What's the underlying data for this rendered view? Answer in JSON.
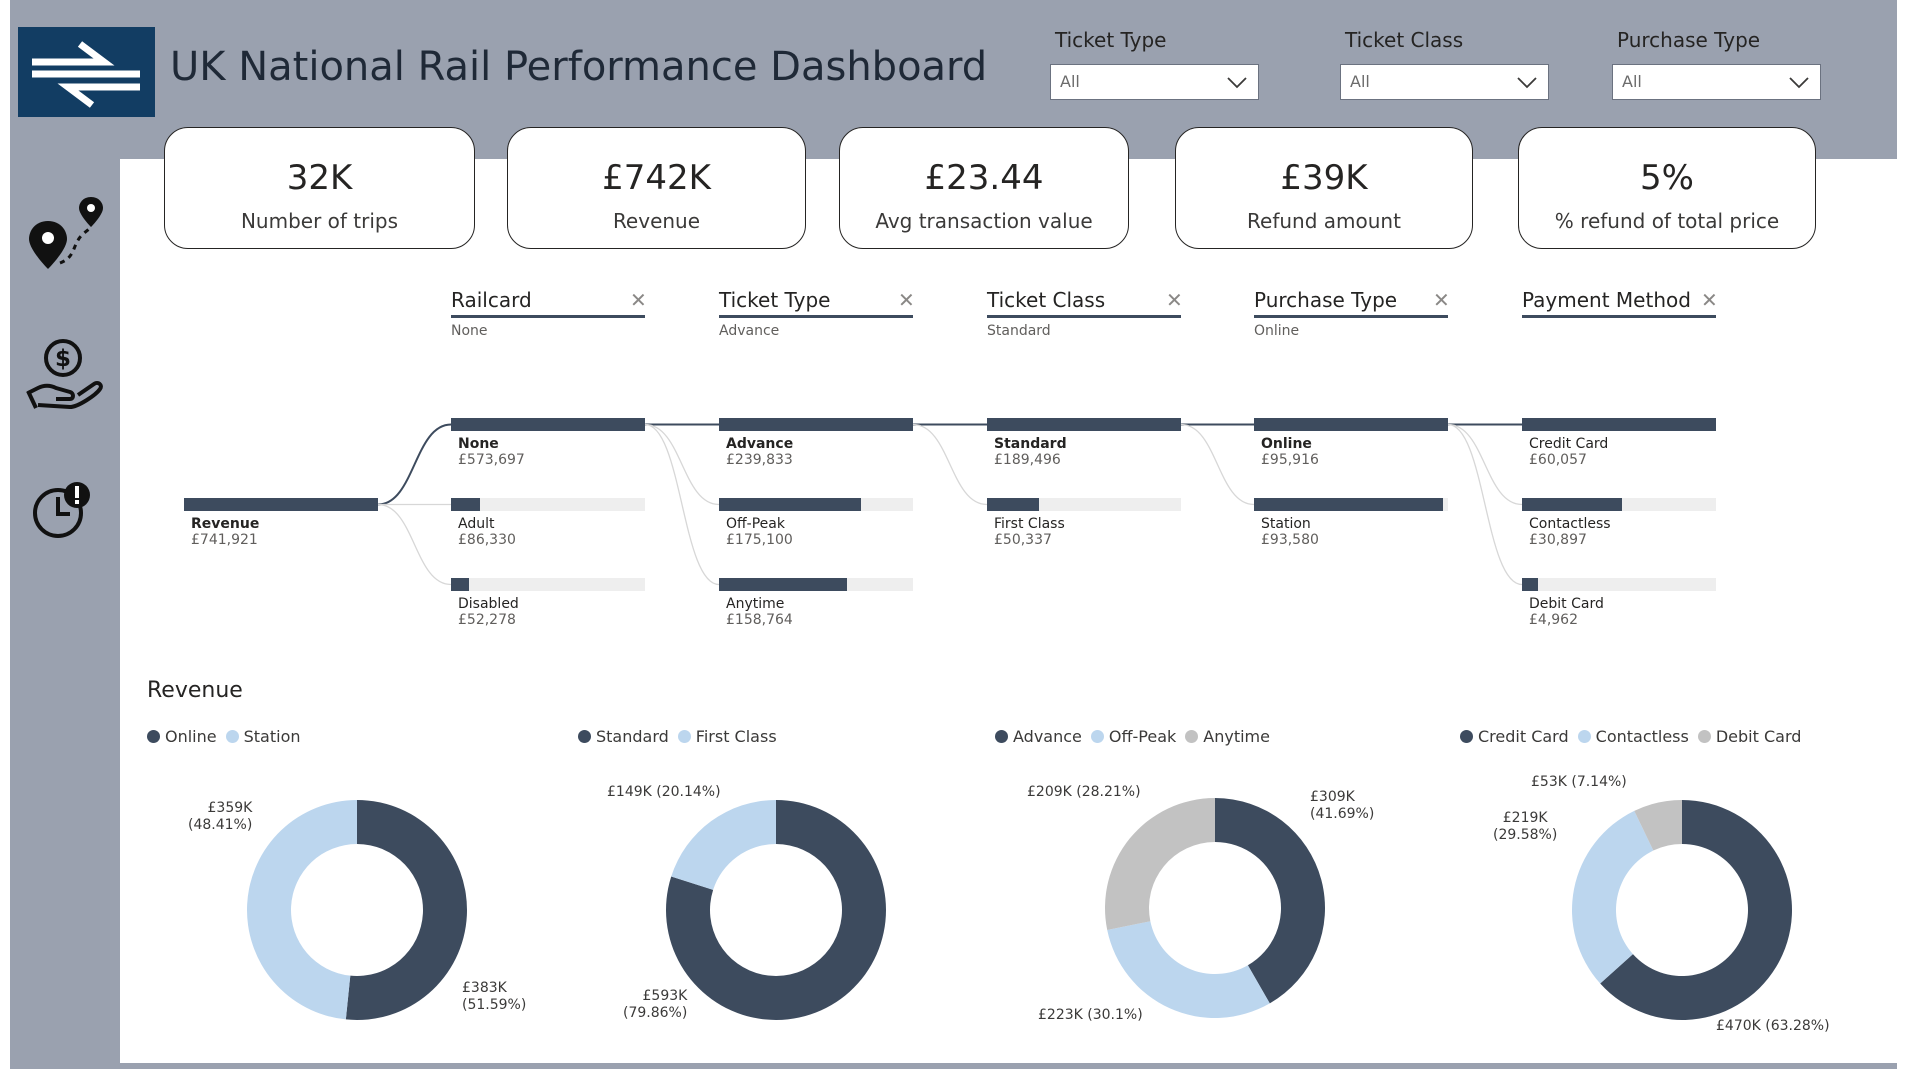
{
  "header": {
    "title": "UK National Rail Performance Dashboard",
    "logo_icon": "national-rail-double-arrow-icon",
    "brand_color": "#123d63"
  },
  "filters": [
    {
      "label": "Ticket Type",
      "value": "All"
    },
    {
      "label": "Ticket Class",
      "value": "All"
    },
    {
      "label": "Purchase Type",
      "value": "All"
    }
  ],
  "sidebar": {
    "items": [
      {
        "icon": "route-map-pin-icon"
      },
      {
        "icon": "money-hand-icon"
      },
      {
        "icon": "clock-alert-icon"
      }
    ]
  },
  "kpis": [
    {
      "value": "32K",
      "label": "Number of trips"
    },
    {
      "value": "£742K",
      "label": "Revenue"
    },
    {
      "value": "£23.44",
      "label": "Avg transaction value"
    },
    {
      "value": "£39K",
      "label": "Refund amount"
    },
    {
      "value": "5%",
      "label": "% refund of total price"
    }
  ],
  "decomposition": {
    "root": {
      "label": "Revenue",
      "value": "£741,921",
      "fraction": 1.0
    },
    "levels": [
      {
        "title": "Railcard",
        "selected": "None",
        "nodes": [
          {
            "label": "None",
            "value": "£573,697",
            "fraction": 1.0,
            "bold": true
          },
          {
            "label": "Adult",
            "value": "£86,330",
            "fraction": 0.15
          },
          {
            "label": "Disabled",
            "value": "£52,278",
            "fraction": 0.091
          }
        ]
      },
      {
        "title": "Ticket Type",
        "selected": "Advance",
        "nodes": [
          {
            "label": "Advance",
            "value": "£239,833",
            "fraction": 1.0,
            "bold": true
          },
          {
            "label": "Off-Peak",
            "value": "£175,100",
            "fraction": 0.73
          },
          {
            "label": "Anytime",
            "value": "£158,764",
            "fraction": 0.662
          }
        ]
      },
      {
        "title": "Ticket Class",
        "selected": "Standard",
        "nodes": [
          {
            "label": "Standard",
            "value": "£189,496",
            "fraction": 1.0,
            "bold": true
          },
          {
            "label": "First Class",
            "value": "£50,337",
            "fraction": 0.266
          }
        ]
      },
      {
        "title": "Purchase Type",
        "selected": "Online",
        "nodes": [
          {
            "label": "Online",
            "value": "£95,916",
            "fraction": 1.0,
            "bold": true
          },
          {
            "label": "Station",
            "value": "£93,580",
            "fraction": 0.976
          }
        ]
      },
      {
        "title": "Payment Method",
        "selected": "",
        "nodes": [
          {
            "label": "Credit Card",
            "value": "£60,057",
            "fraction": 1.0
          },
          {
            "label": "Contactless",
            "value": "£30,897",
            "fraction": 0.514
          },
          {
            "label": "Debit Card",
            "value": "£4,962",
            "fraction": 0.083
          }
        ]
      }
    ]
  },
  "revenue_section": {
    "title": "Revenue"
  },
  "colors": {
    "dark": "#3d4b5e",
    "light": "#bcd6ee",
    "grey": "#c2c2c2"
  },
  "chart_data": [
    {
      "type": "pie",
      "title": "",
      "categories": [
        "Online",
        "Station"
      ],
      "values": [
        383,
        359
      ],
      "percents": [
        51.59,
        48.41
      ],
      "labels": [
        "£383K\n(51.59%)",
        "£359K\n(48.41%)"
      ],
      "colors": [
        "#3d4b5e",
        "#bcd6ee"
      ]
    },
    {
      "type": "pie",
      "title": "",
      "categories": [
        "Standard",
        "First Class"
      ],
      "values": [
        593,
        149
      ],
      "percents": [
        79.86,
        20.14
      ],
      "labels": [
        "£593K\n(79.86%)",
        "£149K (20.14%)"
      ],
      "colors": [
        "#3d4b5e",
        "#bcd6ee"
      ]
    },
    {
      "type": "pie",
      "title": "",
      "categories": [
        "Advance",
        "Off-Peak",
        "Anytime"
      ],
      "values": [
        309,
        223,
        209
      ],
      "percents": [
        41.69,
        30.1,
        28.21
      ],
      "labels": [
        "£309K\n(41.69%)",
        "£223K (30.1%)",
        "£209K (28.21%)"
      ],
      "colors": [
        "#3d4b5e",
        "#bcd6ee",
        "#c2c2c2"
      ]
    },
    {
      "type": "pie",
      "title": "",
      "categories": [
        "Credit Card",
        "Contactless",
        "Debit Card"
      ],
      "values": [
        470,
        219,
        53
      ],
      "percents": [
        63.28,
        29.58,
        7.14
      ],
      "labels": [
        "£470K (63.28%)",
        "£219K\n(29.58%)",
        "£53K (7.14%)"
      ],
      "colors": [
        "#3d4b5e",
        "#bcd6ee",
        "#c2c2c2"
      ]
    }
  ]
}
